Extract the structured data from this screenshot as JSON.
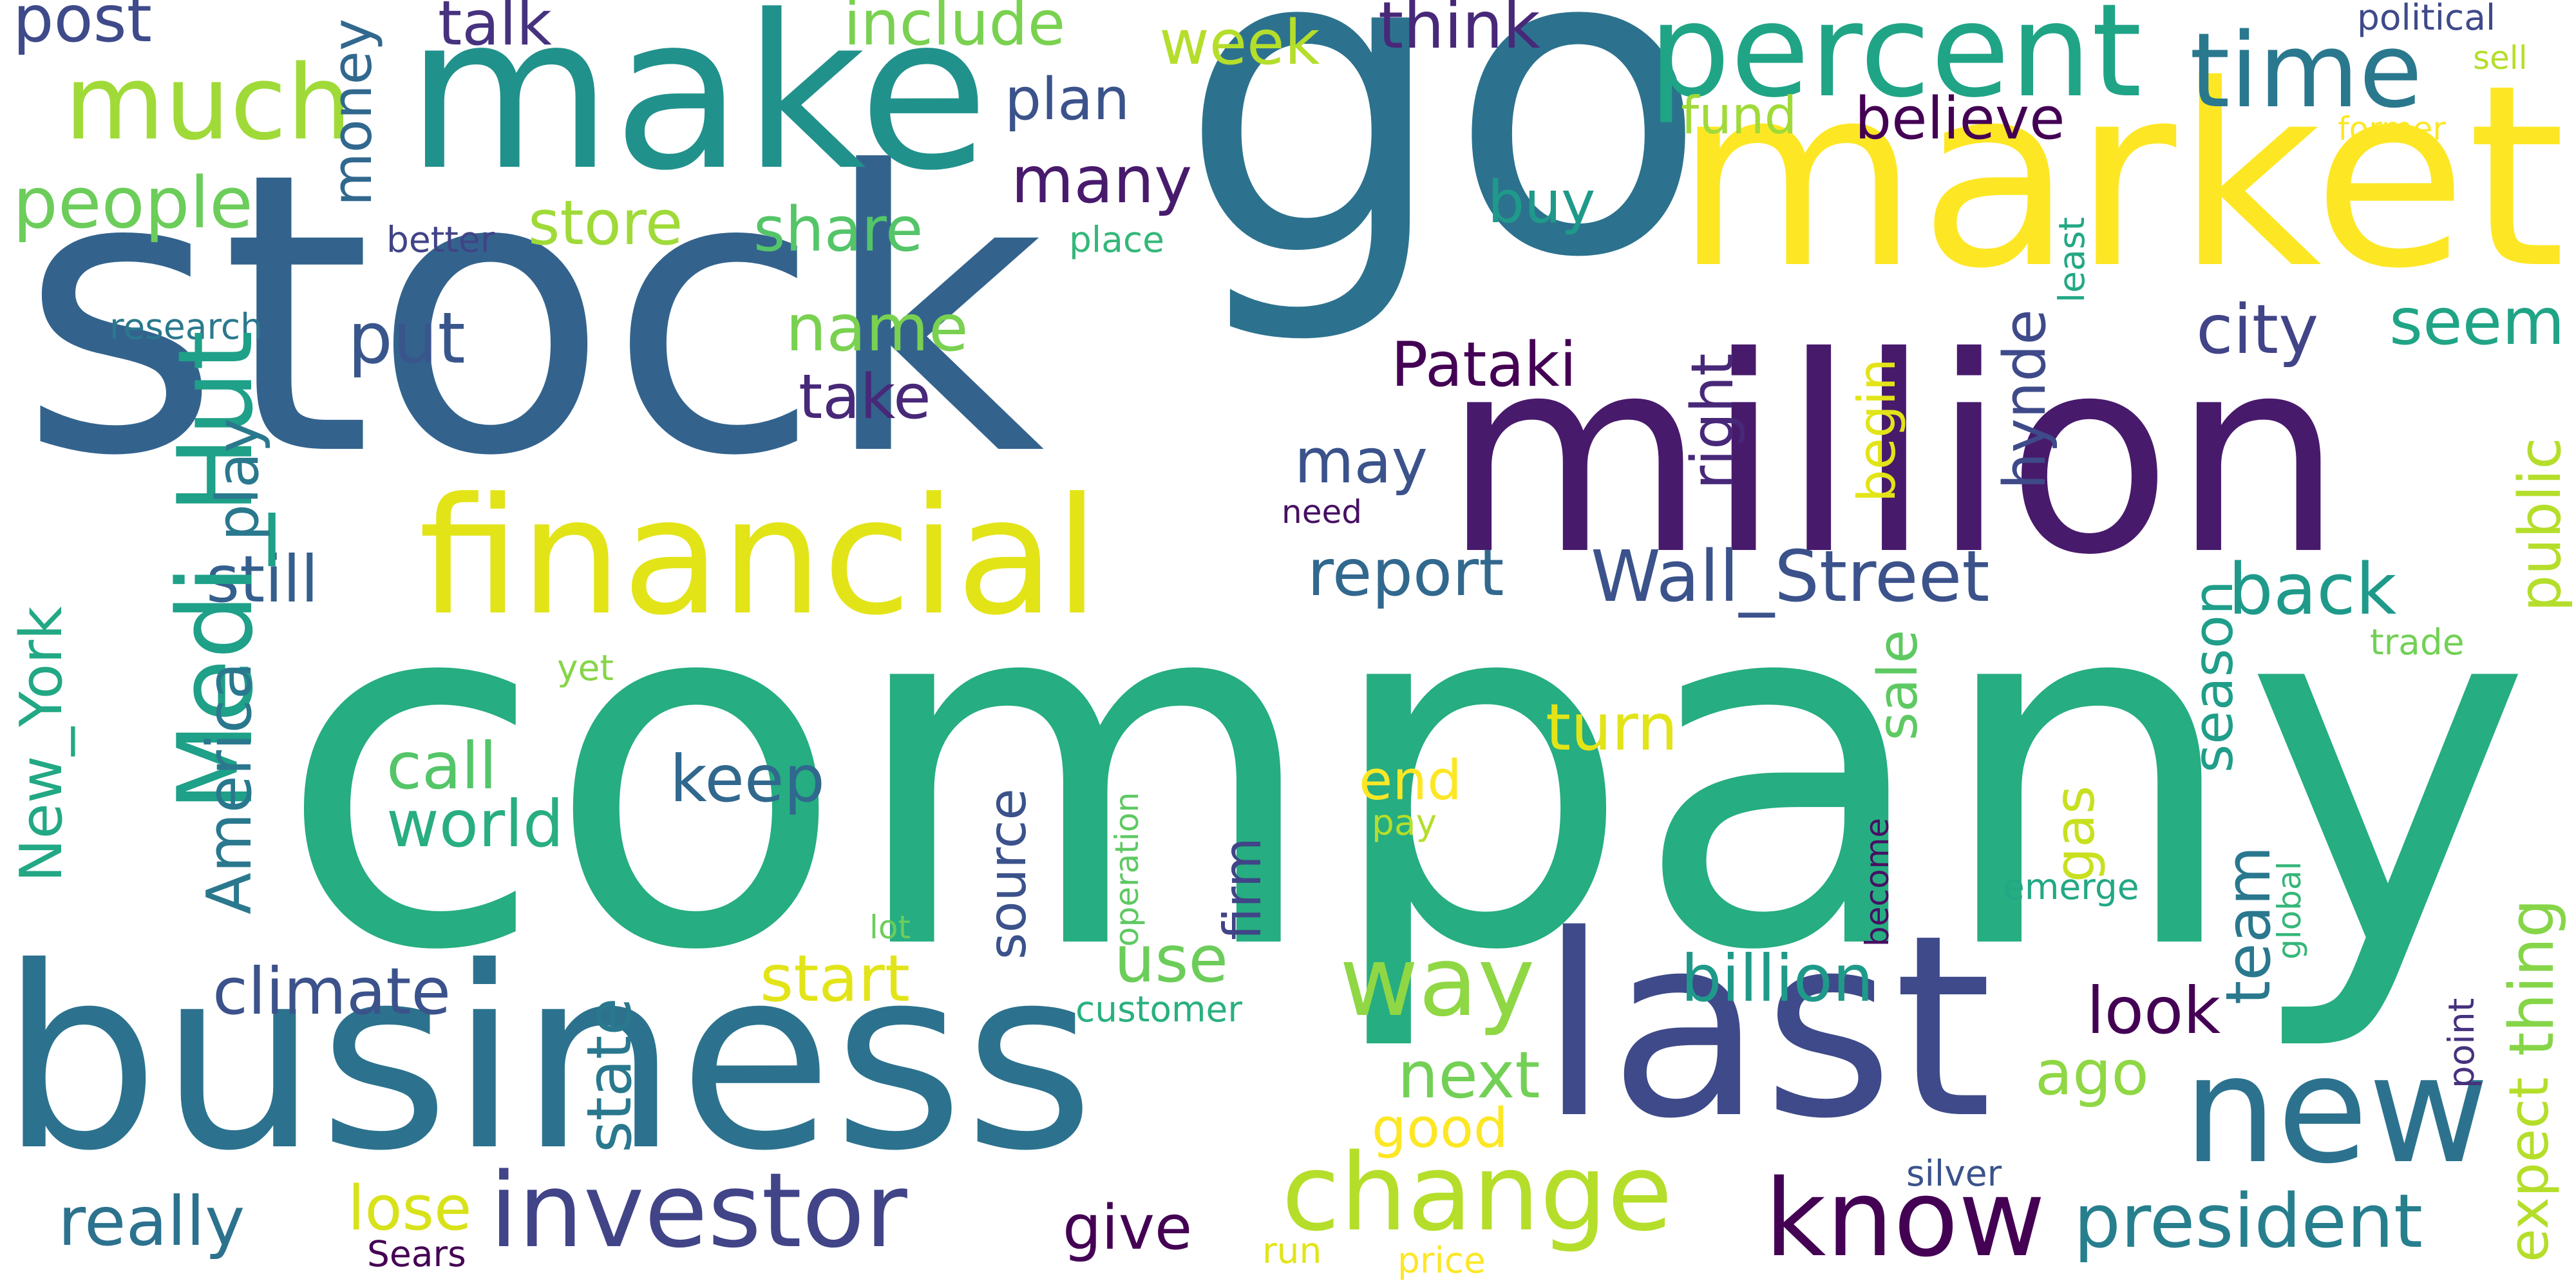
{
  "words": [
    {
      "id": "company",
      "text": "company",
      "color": "#26ad81"
    },
    {
      "id": "go",
      "text": "go",
      "color": "#2c728e"
    },
    {
      "id": "stock",
      "text": "stock",
      "color": "#33638d"
    },
    {
      "id": "million",
      "text": "million",
      "color": "#481a6c"
    },
    {
      "id": "market",
      "text": "market",
      "color": "#fde725"
    },
    {
      "id": "make",
      "text": "make",
      "color": "#21918c"
    },
    {
      "id": "business",
      "text": "business",
      "color": "#2c728e"
    },
    {
      "id": "last",
      "text": "last",
      "color": "#3e4a89"
    },
    {
      "id": "financial",
      "text": "financial",
      "color": "#e2e418"
    },
    {
      "id": "percent",
      "text": "percent",
      "color": "#20a486"
    },
    {
      "id": "new",
      "text": "new",
      "color": "#2c728e"
    },
    {
      "id": "investor",
      "text": "investor",
      "color": "#414487"
    },
    {
      "id": "change",
      "text": "change",
      "color": "#b5de2b"
    },
    {
      "id": "know",
      "text": "know",
      "color": "#440154"
    },
    {
      "id": "medi_hut",
      "text": "Medi_Hut",
      "color": "#1fa088"
    },
    {
      "id": "wall_street",
      "text": "Wall_Street",
      "color": "#3b528b"
    },
    {
      "id": "time",
      "text": "time",
      "color": "#2a788e"
    },
    {
      "id": "much",
      "text": "much",
      "color": "#a0da39"
    },
    {
      "id": "way",
      "text": "way",
      "color": "#8fd744"
    },
    {
      "id": "president",
      "text": "president",
      "color": "#277f8e"
    },
    {
      "id": "people",
      "text": "people",
      "color": "#6ccd5a"
    },
    {
      "id": "post",
      "text": "post",
      "color": "#3e4a89"
    },
    {
      "id": "talk",
      "text": "talk",
      "color": "#46327e"
    },
    {
      "id": "include",
      "text": "include",
      "color": "#7ad151"
    },
    {
      "id": "week",
      "text": "week",
      "color": "#b5de2b"
    },
    {
      "id": "think",
      "text": "think",
      "color": "#482878"
    },
    {
      "id": "money",
      "text": "money",
      "color": "#31688e"
    },
    {
      "id": "plan",
      "text": "plan",
      "color": "#3b528b"
    },
    {
      "id": "fund",
      "text": "fund",
      "color": "#a0da39"
    },
    {
      "id": "believe",
      "text": "believe",
      "color": "#440154"
    },
    {
      "id": "political",
      "text": "political",
      "color": "#3e4a89"
    },
    {
      "id": "sell",
      "text": "sell",
      "color": "#b5de2b"
    },
    {
      "id": "former",
      "text": "former",
      "color": "#fde725"
    },
    {
      "id": "store",
      "text": "store",
      "color": "#a0da39"
    },
    {
      "id": "share",
      "text": "share",
      "color": "#54c568"
    },
    {
      "id": "many",
      "text": "many",
      "color": "#481a6c"
    },
    {
      "id": "buy",
      "text": "buy",
      "color": "#1f9a8a"
    },
    {
      "id": "better",
      "text": "better",
      "color": "#414487"
    },
    {
      "id": "place",
      "text": "place",
      "color": "#35b779"
    },
    {
      "id": "least",
      "text": "least",
      "color": "#22a884"
    },
    {
      "id": "research",
      "text": "research",
      "color": "#2a788e"
    },
    {
      "id": "name",
      "text": "name",
      "color": "#7ad151"
    },
    {
      "id": "put",
      "text": "put",
      "color": "#39568c"
    },
    {
      "id": "city",
      "text": "city",
      "color": "#414487"
    },
    {
      "id": "seem",
      "text": "seem",
      "color": "#20a486"
    },
    {
      "id": "pataki",
      "text": "Pataki",
      "color": "#440154"
    },
    {
      "id": "take",
      "text": "take",
      "color": "#482878"
    },
    {
      "id": "right",
      "text": "right",
      "color": "#482878"
    },
    {
      "id": "hynde",
      "text": "hynde",
      "color": "#3e4a89"
    },
    {
      "id": "begin",
      "text": "begin",
      "color": "#e2e418"
    },
    {
      "id": "public",
      "text": "public",
      "color": "#b5de2b"
    },
    {
      "id": "play",
      "text": "play",
      "color": "#2a788e"
    },
    {
      "id": "may",
      "text": "may",
      "color": "#3b528b"
    },
    {
      "id": "need",
      "text": "need",
      "color": "#471063"
    },
    {
      "id": "still",
      "text": "still",
      "color": "#355f8d"
    },
    {
      "id": "report",
      "text": "report",
      "color": "#31688e"
    },
    {
      "id": "back",
      "text": "back",
      "color": "#1f9a8a"
    },
    {
      "id": "new_york",
      "text": "New_York",
      "color": "#22a884"
    },
    {
      "id": "america",
      "text": "America",
      "color": "#2a788e"
    },
    {
      "id": "yet",
      "text": "yet",
      "color": "#86d549"
    },
    {
      "id": "season",
      "text": "season",
      "color": "#1f9e89"
    },
    {
      "id": "trade",
      "text": "trade",
      "color": "#73d056"
    },
    {
      "id": "sale",
      "text": "sale",
      "color": "#5ec962"
    },
    {
      "id": "call",
      "text": "call",
      "color": "#54c568"
    },
    {
      "id": "world",
      "text": "world",
      "color": "#28ae80"
    },
    {
      "id": "keep",
      "text": "keep",
      "color": "#31688e"
    },
    {
      "id": "turn",
      "text": "turn",
      "color": "#e2e418"
    },
    {
      "id": "end",
      "text": "end",
      "color": "#fde725"
    },
    {
      "id": "source",
      "text": "source",
      "color": "#3b528b"
    },
    {
      "id": "firm",
      "text": "firm",
      "color": "#414487"
    },
    {
      "id": "operation",
      "text": "operation",
      "color": "#5ec962"
    },
    {
      "id": "pay",
      "text": "pay",
      "color": "#b5de2b"
    },
    {
      "id": "gas",
      "text": "gas",
      "color": "#c8e020"
    },
    {
      "id": "team",
      "text": "team",
      "color": "#2a788e"
    },
    {
      "id": "thing",
      "text": "thing",
      "color": "#86d549"
    },
    {
      "id": "become",
      "text": "become",
      "color": "#471063"
    },
    {
      "id": "emerge",
      "text": "emerge",
      "color": "#22a884"
    },
    {
      "id": "global",
      "text": "global",
      "color": "#35b779"
    },
    {
      "id": "lot",
      "text": "lot",
      "color": "#6ccd5a"
    },
    {
      "id": "use",
      "text": "use",
      "color": "#6ccd5a"
    },
    {
      "id": "start",
      "text": "start",
      "color": "#e2e418"
    },
    {
      "id": "climate",
      "text": "climate",
      "color": "#3b528b"
    },
    {
      "id": "state",
      "text": "state",
      "color": "#2a788e"
    },
    {
      "id": "billion",
      "text": "billion",
      "color": "#1f9a8a"
    },
    {
      "id": "look",
      "text": "look",
      "color": "#440154"
    },
    {
      "id": "customer",
      "text": "customer",
      "color": "#2ab07f"
    },
    {
      "id": "next",
      "text": "next",
      "color": "#73d056"
    },
    {
      "id": "ago",
      "text": "ago",
      "color": "#8fd744"
    },
    {
      "id": "point",
      "text": "point",
      "color": "#46327e"
    },
    {
      "id": "good",
      "text": "good",
      "color": "#fde725"
    },
    {
      "id": "expect",
      "text": "expect",
      "color": "#b5de2b"
    },
    {
      "id": "really",
      "text": "really",
      "color": "#2c728e"
    },
    {
      "id": "lose",
      "text": "lose",
      "color": "#d8e219"
    },
    {
      "id": "give",
      "text": "give",
      "color": "#440154"
    },
    {
      "id": "silver",
      "text": "silver",
      "color": "#3b528b"
    },
    {
      "id": "sears",
      "text": "Sears",
      "color": "#440154"
    },
    {
      "id": "run",
      "text": "run",
      "color": "#e2e418"
    },
    {
      "id": "price",
      "text": "price",
      "color": "#fde725"
    }
  ]
}
